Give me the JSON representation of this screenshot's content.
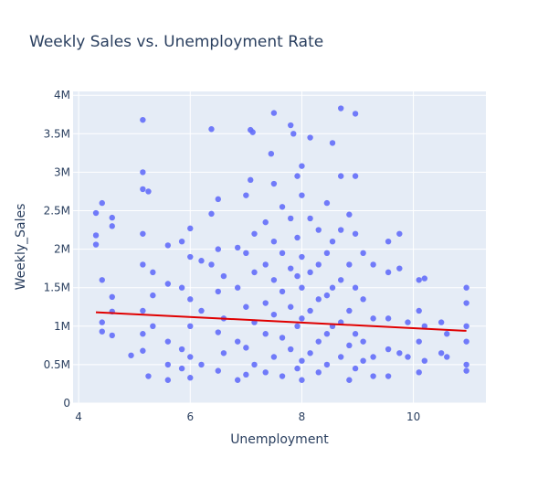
{
  "chart_data": {
    "type": "scatter",
    "title": "Weekly Sales vs. Unemployment Rate",
    "xlabel": "Unemployment",
    "ylabel": "Weekly_Sales",
    "xlim": [
      3.9,
      11.3
    ],
    "ylim": [
      0,
      4050000
    ],
    "x_ticks": [
      4,
      6,
      8,
      10
    ],
    "x_tick_labels": [
      "4",
      "6",
      "8",
      "10"
    ],
    "y_ticks": [
      0,
      500000,
      1000000,
      1500000,
      2000000,
      2500000,
      3000000,
      3500000,
      4000000
    ],
    "y_tick_labels": [
      "0",
      "0.5M",
      "1M",
      "1.5M",
      "2M",
      "2.5M",
      "3M",
      "3.5M",
      "4M"
    ],
    "grid": true,
    "colors": {
      "points": "#636efa",
      "trendline": "#e00000",
      "plot_background": "#e5ecf6"
    },
    "series": [
      {
        "mode": "markers",
        "points": [
          [
            4.31,
            2180000
          ],
          [
            4.31,
            2060000
          ],
          [
            4.31,
            2470000
          ],
          [
            4.42,
            2600000
          ],
          [
            4.42,
            1600000
          ],
          [
            4.42,
            1050000
          ],
          [
            4.42,
            930000
          ],
          [
            4.6,
            2410000
          ],
          [
            4.6,
            2300000
          ],
          [
            4.6,
            1380000
          ],
          [
            4.6,
            880000
          ],
          [
            4.6,
            1190000
          ],
          [
            4.94,
            620000
          ],
          [
            5.15,
            3680000
          ],
          [
            5.15,
            3000000
          ],
          [
            5.15,
            2780000
          ],
          [
            5.15,
            2200000
          ],
          [
            5.15,
            1800000
          ],
          [
            5.15,
            1200000
          ],
          [
            5.15,
            900000
          ],
          [
            5.15,
            680000
          ],
          [
            5.25,
            2750000
          ],
          [
            5.25,
            350000
          ],
          [
            5.33,
            1700000
          ],
          [
            5.33,
            1400000
          ],
          [
            5.33,
            1000000
          ],
          [
            5.6,
            2050000
          ],
          [
            5.6,
            1550000
          ],
          [
            5.6,
            800000
          ],
          [
            5.6,
            500000
          ],
          [
            5.6,
            300000
          ],
          [
            5.85,
            2100000
          ],
          [
            5.85,
            1500000
          ],
          [
            5.85,
            700000
          ],
          [
            5.85,
            450000
          ],
          [
            6.0,
            2270000
          ],
          [
            6.0,
            1900000
          ],
          [
            6.0,
            1350000
          ],
          [
            6.0,
            1000000
          ],
          [
            6.0,
            600000
          ],
          [
            6.0,
            330000
          ],
          [
            6.2,
            1850000
          ],
          [
            6.2,
            1200000
          ],
          [
            6.2,
            500000
          ],
          [
            6.38,
            3560000
          ],
          [
            6.38,
            2460000
          ],
          [
            6.38,
            1800000
          ],
          [
            6.5,
            2650000
          ],
          [
            6.5,
            2000000
          ],
          [
            6.5,
            1450000
          ],
          [
            6.5,
            920000
          ],
          [
            6.5,
            420000
          ],
          [
            6.6,
            1650000
          ],
          [
            6.6,
            1100000
          ],
          [
            6.6,
            650000
          ],
          [
            6.85,
            2020000
          ],
          [
            6.85,
            1500000
          ],
          [
            6.85,
            800000
          ],
          [
            6.85,
            300000
          ],
          [
            7.0,
            2700000
          ],
          [
            7.0,
            1950000
          ],
          [
            7.0,
            1250000
          ],
          [
            7.0,
            720000
          ],
          [
            7.0,
            370000
          ],
          [
            7.08,
            3550000
          ],
          [
            7.08,
            2900000
          ],
          [
            7.12,
            3520000
          ],
          [
            7.15,
            2200000
          ],
          [
            7.15,
            1700000
          ],
          [
            7.15,
            1050000
          ],
          [
            7.15,
            500000
          ],
          [
            7.35,
            2350000
          ],
          [
            7.35,
            1800000
          ],
          [
            7.35,
            1300000
          ],
          [
            7.35,
            900000
          ],
          [
            7.35,
            400000
          ],
          [
            7.45,
            3240000
          ],
          [
            7.5,
            3770000
          ],
          [
            7.5,
            2850000
          ],
          [
            7.5,
            2100000
          ],
          [
            7.5,
            1600000
          ],
          [
            7.5,
            1150000
          ],
          [
            7.5,
            600000
          ],
          [
            7.65,
            2550000
          ],
          [
            7.65,
            1950000
          ],
          [
            7.65,
            1450000
          ],
          [
            7.65,
            850000
          ],
          [
            7.65,
            350000
          ],
          [
            7.8,
            3610000
          ],
          [
            7.85,
            3500000
          ],
          [
            7.8,
            2400000
          ],
          [
            7.8,
            1750000
          ],
          [
            7.8,
            1250000
          ],
          [
            7.8,
            700000
          ],
          [
            7.92,
            2950000
          ],
          [
            7.92,
            2150000
          ],
          [
            7.92,
            1650000
          ],
          [
            7.92,
            1000000
          ],
          [
            7.92,
            450000
          ],
          [
            8.0,
            3080000
          ],
          [
            8.0,
            2700000
          ],
          [
            8.0,
            1900000
          ],
          [
            8.0,
            1500000
          ],
          [
            8.0,
            1100000
          ],
          [
            8.0,
            550000
          ],
          [
            8.0,
            300000
          ],
          [
            8.15,
            3450000
          ],
          [
            8.15,
            2400000
          ],
          [
            8.15,
            1700000
          ],
          [
            8.15,
            1200000
          ],
          [
            8.15,
            650000
          ],
          [
            8.3,
            2250000
          ],
          [
            8.3,
            1800000
          ],
          [
            8.3,
            1350000
          ],
          [
            8.3,
            800000
          ],
          [
            8.3,
            400000
          ],
          [
            8.45,
            2600000
          ],
          [
            8.45,
            1950000
          ],
          [
            8.45,
            1400000
          ],
          [
            8.45,
            900000
          ],
          [
            8.45,
            500000
          ],
          [
            8.55,
            3380000
          ],
          [
            8.55,
            2100000
          ],
          [
            8.55,
            1500000
          ],
          [
            8.55,
            1000000
          ],
          [
            8.7,
            3830000
          ],
          [
            8.7,
            2950000
          ],
          [
            8.7,
            2250000
          ],
          [
            8.7,
            1600000
          ],
          [
            8.7,
            1050000
          ],
          [
            8.7,
            600000
          ],
          [
            8.85,
            2450000
          ],
          [
            8.85,
            1800000
          ],
          [
            8.85,
            1200000
          ],
          [
            8.85,
            750000
          ],
          [
            8.85,
            300000
          ],
          [
            8.96,
            3760000
          ],
          [
            8.96,
            2950000
          ],
          [
            8.96,
            2200000
          ],
          [
            8.96,
            1500000
          ],
          [
            8.96,
            900000
          ],
          [
            8.96,
            450000
          ],
          [
            9.1,
            1950000
          ],
          [
            9.1,
            1350000
          ],
          [
            9.1,
            800000
          ],
          [
            9.1,
            550000
          ],
          [
            9.28,
            1800000
          ],
          [
            9.28,
            1100000
          ],
          [
            9.28,
            600000
          ],
          [
            9.28,
            350000
          ],
          [
            9.55,
            2100000
          ],
          [
            9.55,
            1700000
          ],
          [
            9.55,
            1100000
          ],
          [
            9.55,
            700000
          ],
          [
            9.55,
            350000
          ],
          [
            9.75,
            2200000
          ],
          [
            9.75,
            1750000
          ],
          [
            9.75,
            650000
          ],
          [
            9.9,
            1050000
          ],
          [
            9.9,
            600000
          ],
          [
            10.1,
            1600000
          ],
          [
            10.1,
            1200000
          ],
          [
            10.1,
            800000
          ],
          [
            10.1,
            400000
          ],
          [
            10.2,
            1620000
          ],
          [
            10.2,
            1000000
          ],
          [
            10.2,
            550000
          ],
          [
            10.5,
            1050000
          ],
          [
            10.5,
            650000
          ],
          [
            10.6,
            900000
          ],
          [
            10.6,
            600000
          ],
          [
            10.95,
            1500000
          ],
          [
            10.95,
            1300000
          ],
          [
            10.95,
            1000000
          ],
          [
            10.95,
            800000
          ],
          [
            10.95,
            500000
          ],
          [
            10.95,
            420000
          ]
        ]
      },
      {
        "mode": "lines",
        "points": [
          [
            4.31,
            1180000
          ],
          [
            10.95,
            940000
          ]
        ]
      }
    ]
  }
}
